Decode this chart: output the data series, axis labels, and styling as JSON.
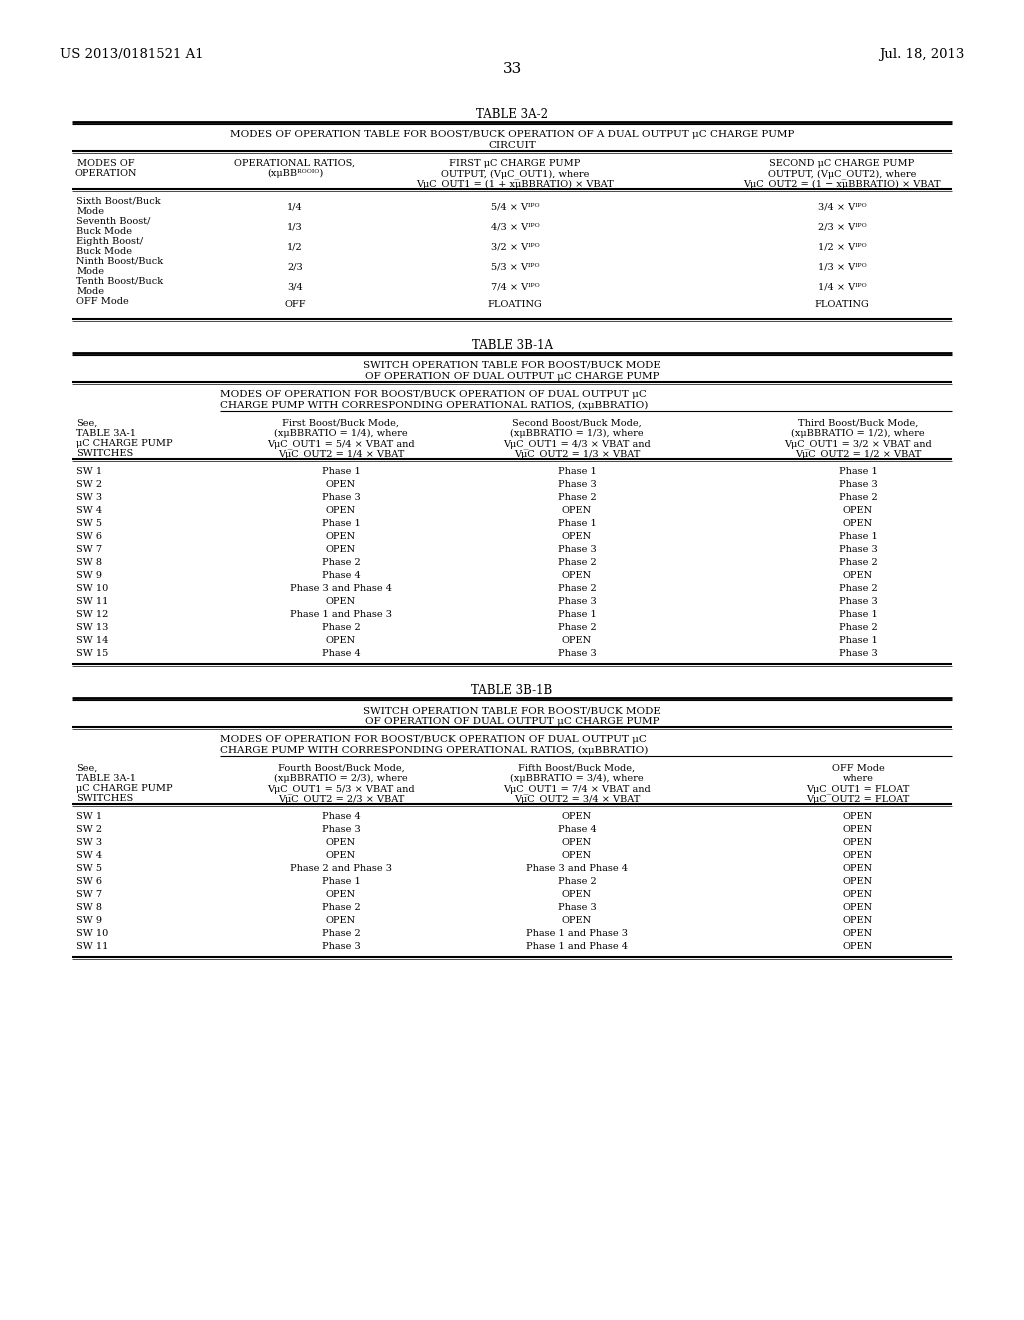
{
  "page_number": "33",
  "patent_number": "US 2013/0181521 A1",
  "patent_date": "Jul. 18, 2013",
  "table3a2_title": "TABLE 3A-2",
  "table3a2_rows": [
    [
      "Sixth Boost/Buck\nMode",
      "1/4",
      "5/4 x V_BAT",
      "3/4 x V_BAT"
    ],
    [
      "Seventh Boost/\nBuck Mode",
      "1/3",
      "4/3 x V_BAT",
      "2/3 x V_BAT"
    ],
    [
      "Eighth Boost/\nBuck Mode",
      "1/2",
      "3/2 x V_BAT",
      "1/2 x V_BAT"
    ],
    [
      "Ninth Boost/Buck\nMode",
      "2/3",
      "5/3 x V_BAT",
      "1/3 x V_BAT"
    ],
    [
      "Tenth Boost/Buck\nMode",
      "3/4",
      "7/4 x V_BAT",
      "1/4 x V_BAT"
    ],
    [
      "OFF Mode",
      "OFF",
      "FLOATING",
      "FLOATING"
    ]
  ],
  "table3b1a_title": "TABLE 3B-1A",
  "table3b1a_rows": [
    [
      "SW 1",
      "Phase 1",
      "Phase 1",
      "Phase 1"
    ],
    [
      "SW 2",
      "OPEN",
      "Phase 3",
      "Phase 3"
    ],
    [
      "SW 3",
      "Phase 3",
      "Phase 2",
      "Phase 2"
    ],
    [
      "SW 4",
      "OPEN",
      "OPEN",
      "OPEN"
    ],
    [
      "SW 5",
      "Phase 1",
      "Phase 1",
      "OPEN"
    ],
    [
      "SW 6",
      "OPEN",
      "OPEN",
      "Phase 1"
    ],
    [
      "SW 7",
      "OPEN",
      "Phase 3",
      "Phase 3"
    ],
    [
      "SW 8",
      "Phase 2",
      "Phase 2",
      "Phase 2"
    ],
    [
      "SW 9",
      "Phase 4",
      "OPEN",
      "OPEN"
    ],
    [
      "SW 10",
      "Phase 3 and Phase 4",
      "Phase 2",
      "Phase 2"
    ],
    [
      "SW 11",
      "OPEN",
      "Phase 3",
      "Phase 3"
    ],
    [
      "SW 12",
      "Phase 1 and Phase 3",
      "Phase 1",
      "Phase 1"
    ],
    [
      "SW 13",
      "Phase 2",
      "Phase 2",
      "Phase 2"
    ],
    [
      "SW 14",
      "OPEN",
      "OPEN",
      "Phase 1"
    ],
    [
      "SW 15",
      "Phase 4",
      "Phase 3",
      "Phase 3"
    ]
  ],
  "table3b1b_title": "TABLE 3B-1B",
  "table3b1b_rows": [
    [
      "SW 1",
      "Phase 4",
      "OPEN",
      "OPEN"
    ],
    [
      "SW 2",
      "Phase 3",
      "Phase 4",
      "OPEN"
    ],
    [
      "SW 3",
      "OPEN",
      "OPEN",
      "OPEN"
    ],
    [
      "SW 4",
      "OPEN",
      "OPEN",
      "OPEN"
    ],
    [
      "SW 5",
      "Phase 2 and Phase 3",
      "Phase 3 and Phase 4",
      "OPEN"
    ],
    [
      "SW 6",
      "Phase 1",
      "Phase 2",
      "OPEN"
    ],
    [
      "SW 7",
      "OPEN",
      "OPEN",
      "OPEN"
    ],
    [
      "SW 8",
      "Phase 2",
      "Phase 3",
      "OPEN"
    ],
    [
      "SW 9",
      "OPEN",
      "OPEN",
      "OPEN"
    ],
    [
      "SW 10",
      "Phase 2",
      "Phase 1 and Phase 3",
      "OPEN"
    ],
    [
      "SW 11",
      "Phase 3",
      "Phase 1 and Phase 4",
      "OPEN"
    ]
  ]
}
